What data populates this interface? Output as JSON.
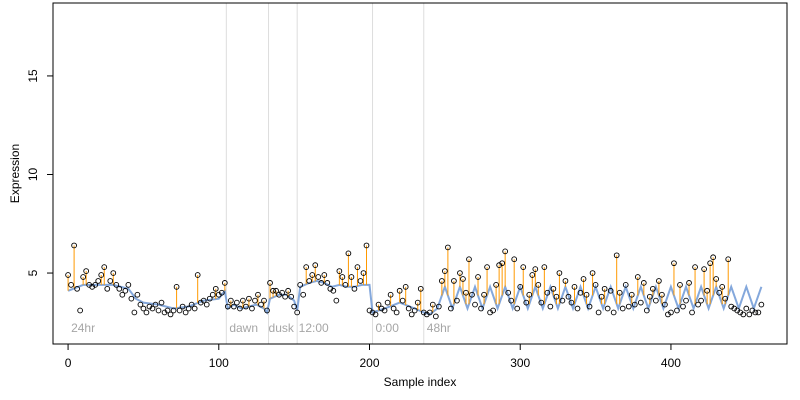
{
  "chart_data": {
    "type": "scatter",
    "xlabel": "Sample index",
    "ylabel": "Expression",
    "xlim": [
      -10,
      477
    ],
    "ylim": [
      1.4,
      18.7
    ],
    "x_ticks": [
      0,
      100,
      200,
      300,
      400
    ],
    "y_ticks": [
      5,
      10,
      15
    ],
    "grid": false,
    "legend": "none",
    "colors": {
      "points_stroke": "#000000",
      "fitted_line": "#6f99d6",
      "residual": "#ff9900",
      "separator": "#dddddd",
      "annotation": "#a6a6a6"
    },
    "separators": [
      105,
      133,
      152,
      202,
      236
    ],
    "annotations": [
      {
        "text": "24hr",
        "x": 2,
        "y": 2.0
      },
      {
        "text": "dawn",
        "x": 107,
        "y": 2.0
      },
      {
        "text": "dusk",
        "x": 133,
        "y": 2.0
      },
      {
        "text": "12:00",
        "x": 153,
        "y": 2.0
      },
      {
        "text": "0:00",
        "x": 204,
        "y": 2.0
      },
      {
        "text": "48hr",
        "x": 238,
        "y": 2.0
      }
    ],
    "points": [
      [
        0,
        4.9
      ],
      [
        2,
        4.4
      ],
      [
        4,
        6.4
      ],
      [
        6,
        4.2
      ],
      [
        8,
        3.1
      ],
      [
        10,
        4.8
      ],
      [
        12,
        5.1
      ],
      [
        14,
        4.4
      ],
      [
        16,
        4.3
      ],
      [
        18,
        4.4
      ],
      [
        20,
        4.6
      ],
      [
        22,
        4.9
      ],
      [
        24,
        5.3
      ],
      [
        26,
        4.2
      ],
      [
        28,
        4.6
      ],
      [
        30,
        5.0
      ],
      [
        32,
        4.4
      ],
      [
        34,
        4.2
      ],
      [
        36,
        3.9
      ],
      [
        38,
        4.1
      ],
      [
        40,
        4.4
      ],
      [
        42,
        3.7
      ],
      [
        44,
        3.0
      ],
      [
        46,
        3.9
      ],
      [
        48,
        3.4
      ],
      [
        50,
        3.2
      ],
      [
        52,
        3.0
      ],
      [
        54,
        3.3
      ],
      [
        56,
        3.2
      ],
      [
        58,
        3.4
      ],
      [
        60,
        3.1
      ],
      [
        62,
        3.5
      ],
      [
        64,
        3.0
      ],
      [
        66,
        3.1
      ],
      [
        68,
        2.9
      ],
      [
        70,
        3.1
      ],
      [
        72,
        4.3
      ],
      [
        74,
        3.1
      ],
      [
        76,
        3.3
      ],
      [
        78,
        3.0
      ],
      [
        80,
        3.2
      ],
      [
        82,
        3.4
      ],
      [
        84,
        3.2
      ],
      [
        86,
        4.9
      ],
      [
        88,
        3.5
      ],
      [
        90,
        3.6
      ],
      [
        92,
        3.4
      ],
      [
        94,
        3.7
      ],
      [
        96,
        3.9
      ],
      [
        98,
        4.2
      ],
      [
        100,
        3.9
      ],
      [
        102,
        4.0
      ],
      [
        104,
        4.5
      ],
      [
        106,
        3.3
      ],
      [
        108,
        3.6
      ],
      [
        110,
        3.3
      ],
      [
        112,
        3.5
      ],
      [
        114,
        3.2
      ],
      [
        116,
        3.6
      ],
      [
        118,
        3.3
      ],
      [
        120,
        3.7
      ],
      [
        122,
        3.2
      ],
      [
        124,
        3.6
      ],
      [
        126,
        3.9
      ],
      [
        128,
        3.4
      ],
      [
        130,
        3.6
      ],
      [
        132,
        3.1
      ],
      [
        134,
        4.5
      ],
      [
        136,
        4.1
      ],
      [
        138,
        4.1
      ],
      [
        140,
        3.9
      ],
      [
        142,
        4.0
      ],
      [
        144,
        3.8
      ],
      [
        146,
        4.1
      ],
      [
        148,
        3.8
      ],
      [
        150,
        3.3
      ],
      [
        152,
        3.0
      ],
      [
        154,
        4.4
      ],
      [
        156,
        3.9
      ],
      [
        158,
        5.3
      ],
      [
        160,
        4.6
      ],
      [
        162,
        4.9
      ],
      [
        164,
        5.4
      ],
      [
        166,
        4.8
      ],
      [
        168,
        4.5
      ],
      [
        170,
        4.9
      ],
      [
        172,
        4.5
      ],
      [
        174,
        4.2
      ],
      [
        176,
        4.1
      ],
      [
        178,
        3.6
      ],
      [
        180,
        5.1
      ],
      [
        182,
        4.8
      ],
      [
        184,
        4.4
      ],
      [
        186,
        6.0
      ],
      [
        188,
        4.8
      ],
      [
        190,
        4.2
      ],
      [
        192,
        5.3
      ],
      [
        194,
        4.6
      ],
      [
        196,
        5.0
      ],
      [
        198,
        6.4
      ],
      [
        200,
        3.1
      ],
      [
        202,
        3.0
      ],
      [
        204,
        2.9
      ],
      [
        206,
        3.4
      ],
      [
        208,
        3.2
      ],
      [
        210,
        3.1
      ],
      [
        212,
        3.5
      ],
      [
        214,
        3.9
      ],
      [
        216,
        3.2
      ],
      [
        218,
        3.0
      ],
      [
        220,
        4.1
      ],
      [
        222,
        3.6
      ],
      [
        224,
        4.3
      ],
      [
        226,
        3.2
      ],
      [
        228,
        2.9
      ],
      [
        230,
        3.1
      ],
      [
        232,
        3.5
      ],
      [
        234,
        4.2
      ],
      [
        236,
        3.0
      ],
      [
        238,
        2.9
      ],
      [
        240,
        3.0
      ],
      [
        242,
        3.4
      ],
      [
        244,
        2.8
      ],
      [
        246,
        3.3
      ],
      [
        248,
        4.6
      ],
      [
        250,
        5.1
      ],
      [
        252,
        6.3
      ],
      [
        254,
        3.2
      ],
      [
        256,
        4.6
      ],
      [
        258,
        3.6
      ],
      [
        260,
        5.0
      ],
      [
        262,
        4.7
      ],
      [
        264,
        4.0
      ],
      [
        266,
        5.7
      ],
      [
        268,
        3.9
      ],
      [
        270,
        3.4
      ],
      [
        272,
        4.8
      ],
      [
        274,
        3.2
      ],
      [
        276,
        3.9
      ],
      [
        278,
        5.3
      ],
      [
        280,
        3.0
      ],
      [
        282,
        3.1
      ],
      [
        284,
        4.4
      ],
      [
        286,
        5.4
      ],
      [
        288,
        5.5
      ],
      [
        290,
        6.1
      ],
      [
        292,
        4.0
      ],
      [
        294,
        3.6
      ],
      [
        296,
        5.7
      ],
      [
        298,
        3.2
      ],
      [
        300,
        4.3
      ],
      [
        302,
        5.3
      ],
      [
        304,
        3.5
      ],
      [
        306,
        3.9
      ],
      [
        308,
        4.9
      ],
      [
        310,
        5.2
      ],
      [
        312,
        4.4
      ],
      [
        314,
        3.5
      ],
      [
        316,
        5.3
      ],
      [
        318,
        4.0
      ],
      [
        320,
        3.3
      ],
      [
        322,
        4.2
      ],
      [
        324,
        3.8
      ],
      [
        326,
        5.0
      ],
      [
        328,
        3.6
      ],
      [
        330,
        4.6
      ],
      [
        332,
        3.8
      ],
      [
        334,
        3.5
      ],
      [
        336,
        4.3
      ],
      [
        338,
        3.2
      ],
      [
        340,
        4.0
      ],
      [
        342,
        4.7
      ],
      [
        344,
        3.9
      ],
      [
        346,
        3.3
      ],
      [
        348,
        5.0
      ],
      [
        350,
        4.4
      ],
      [
        352,
        3.0
      ],
      [
        354,
        3.8
      ],
      [
        356,
        4.2
      ],
      [
        358,
        3.2
      ],
      [
        360,
        4.1
      ],
      [
        362,
        3.0
      ],
      [
        364,
        5.9
      ],
      [
        366,
        4.0
      ],
      [
        368,
        3.2
      ],
      [
        370,
        4.4
      ],
      [
        372,
        3.3
      ],
      [
        374,
        3.9
      ],
      [
        376,
        3.4
      ],
      [
        378,
        4.8
      ],
      [
        380,
        3.5
      ],
      [
        382,
        4.5
      ],
      [
        384,
        3.1
      ],
      [
        386,
        3.8
      ],
      [
        388,
        4.2
      ],
      [
        390,
        3.6
      ],
      [
        392,
        4.6
      ],
      [
        394,
        3.9
      ],
      [
        396,
        3.4
      ],
      [
        398,
        2.9
      ],
      [
        400,
        3.0
      ],
      [
        402,
        5.5
      ],
      [
        404,
        3.1
      ],
      [
        406,
        4.4
      ],
      [
        408,
        3.3
      ],
      [
        410,
        3.6
      ],
      [
        412,
        4.5
      ],
      [
        414,
        3.0
      ],
      [
        416,
        5.3
      ],
      [
        418,
        3.4
      ],
      [
        420,
        3.6
      ],
      [
        422,
        5.2
      ],
      [
        424,
        4.1
      ],
      [
        426,
        5.5
      ],
      [
        428,
        5.8
      ],
      [
        430,
        4.7
      ],
      [
        432,
        4.0
      ],
      [
        434,
        4.3
      ],
      [
        436,
        3.7
      ],
      [
        438,
        5.7
      ],
      [
        440,
        3.3
      ],
      [
        442,
        3.2
      ],
      [
        444,
        3.1
      ],
      [
        446,
        3.0
      ],
      [
        448,
        2.9
      ],
      [
        450,
        3.2
      ],
      [
        452,
        2.9
      ],
      [
        454,
        3.1
      ],
      [
        456,
        3.0
      ],
      [
        458,
        3.0
      ],
      [
        460,
        3.4
      ]
    ],
    "fitted": [
      [
        0,
        4.1
      ],
      [
        10,
        4.4
      ],
      [
        20,
        4.4
      ],
      [
        30,
        4.4
      ],
      [
        40,
        4.2
      ],
      [
        45,
        3.7
      ],
      [
        50,
        3.5
      ],
      [
        60,
        3.4
      ],
      [
        70,
        3.2
      ],
      [
        80,
        3.3
      ],
      [
        90,
        3.6
      ],
      [
        100,
        3.7
      ],
      [
        104,
        4.1
      ],
      [
        106,
        3.2
      ],
      [
        110,
        3.4
      ],
      [
        115,
        3.2
      ],
      [
        120,
        3.3
      ],
      [
        125,
        3.4
      ],
      [
        130,
        3.2
      ],
      [
        132,
        3.0
      ],
      [
        134,
        3.7
      ],
      [
        140,
        3.9
      ],
      [
        145,
        3.9
      ],
      [
        150,
        3.6
      ],
      [
        152,
        3.1
      ],
      [
        154,
        4.3
      ],
      [
        160,
        4.5
      ],
      [
        165,
        4.6
      ],
      [
        170,
        4.5
      ],
      [
        175,
        4.3
      ],
      [
        180,
        4.4
      ],
      [
        185,
        4.3
      ],
      [
        190,
        4.3
      ],
      [
        195,
        4.4
      ],
      [
        200,
        4.4
      ],
      [
        202,
        3.0
      ],
      [
        210,
        3.2
      ],
      [
        220,
        3.5
      ],
      [
        230,
        3.2
      ],
      [
        236,
        3.0
      ],
      [
        240,
        2.9
      ],
      [
        245,
        3.2
      ],
      [
        250,
        4.3
      ],
      [
        255,
        3.2
      ],
      [
        260,
        4.3
      ],
      [
        265,
        3.2
      ],
      [
        270,
        4.3
      ],
      [
        275,
        3.2
      ],
      [
        280,
        4.3
      ],
      [
        285,
        3.2
      ],
      [
        290,
        4.3
      ],
      [
        295,
        3.2
      ],
      [
        300,
        4.3
      ],
      [
        305,
        3.2
      ],
      [
        310,
        4.3
      ],
      [
        315,
        3.2
      ],
      [
        320,
        4.3
      ],
      [
        325,
        3.2
      ],
      [
        330,
        4.3
      ],
      [
        335,
        3.2
      ],
      [
        340,
        4.3
      ],
      [
        345,
        3.2
      ],
      [
        350,
        4.3
      ],
      [
        355,
        3.2
      ],
      [
        360,
        4.3
      ],
      [
        365,
        3.2
      ],
      [
        370,
        4.3
      ],
      [
        375,
        3.2
      ],
      [
        380,
        4.3
      ],
      [
        385,
        3.2
      ],
      [
        390,
        4.3
      ],
      [
        395,
        3.2
      ],
      [
        400,
        4.3
      ],
      [
        405,
        3.2
      ],
      [
        410,
        4.3
      ],
      [
        415,
        3.2
      ],
      [
        420,
        4.3
      ],
      [
        425,
        3.2
      ],
      [
        430,
        4.3
      ],
      [
        435,
        3.2
      ],
      [
        440,
        4.3
      ],
      [
        445,
        3.2
      ],
      [
        450,
        4.3
      ],
      [
        455,
        3.2
      ],
      [
        460,
        4.3
      ]
    ]
  }
}
